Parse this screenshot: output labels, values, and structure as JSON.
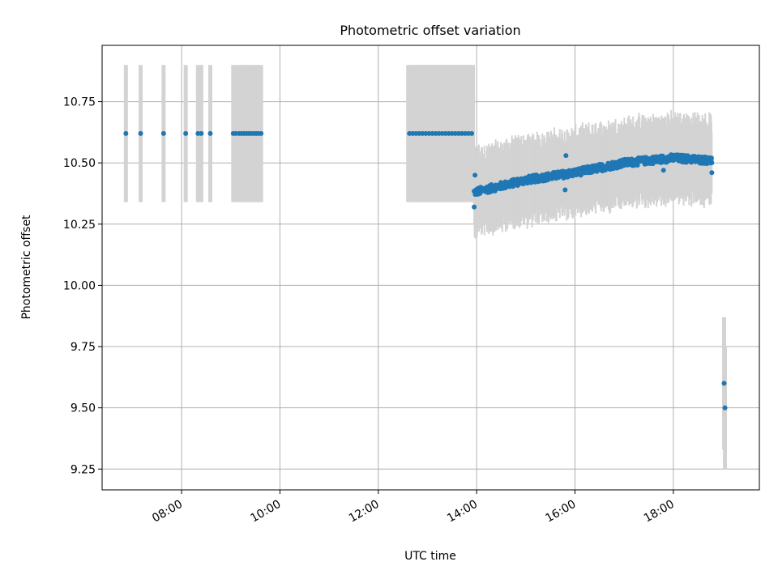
{
  "chart_data": {
    "type": "scatter",
    "title": "Photometric offset variation",
    "xlabel": "UTC time",
    "ylabel": "Photometric offset",
    "x_unit": "UTC time",
    "xlim": [
      "06:23",
      "19:45"
    ],
    "ylim": [
      9.165,
      10.98
    ],
    "x_ticks": [
      "08:00",
      "10:00",
      "12:00",
      "14:00",
      "16:00",
      "18:00"
    ],
    "y_ticks": [
      "9.25",
      "9.50",
      "9.75",
      "10.00",
      "10.25",
      "10.50",
      "10.75"
    ],
    "grid": true,
    "errorbar_color": "#d3d3d3",
    "marker_color": "#1f77b4",
    "early_points": {
      "y": 10.62,
      "error": 0.28,
      "x": [
        "06:52",
        "07:10",
        "07:38",
        "08:05",
        "08:20",
        "08:24",
        "08:35",
        "09:03",
        "09:06",
        "09:10",
        "09:13",
        "09:16",
        "09:19",
        "09:22",
        "09:25",
        "09:28",
        "09:31",
        "09:34",
        "09:37"
      ]
    },
    "midday_points": {
      "y": 10.62,
      "error": 0.28,
      "x": [
        "12:38",
        "12:42",
        "12:46",
        "12:50",
        "12:54",
        "12:58",
        "13:02",
        "13:06",
        "13:10",
        "13:14",
        "13:18",
        "13:22",
        "13:26",
        "13:30",
        "13:34",
        "13:38",
        "13:42",
        "13:46",
        "13:50",
        "13:54"
      ]
    },
    "trend_series": {
      "description_range": [
        "13:57",
        "18:47"
      ],
      "trend": [
        {
          "x": "13:57",
          "y": 10.38
        },
        {
          "x": "15:00",
          "y": 10.43
        },
        {
          "x": "16:00",
          "y": 10.46
        },
        {
          "x": "17:00",
          "y": 10.5
        },
        {
          "x": "18:00",
          "y": 10.52
        },
        {
          "x": "18:47",
          "y": 10.51
        }
      ],
      "error": 0.15,
      "n_points": 650,
      "scatter": 0.015
    },
    "outliers": [
      {
        "x": "13:57",
        "y": 10.32
      },
      {
        "x": "13:58",
        "y": 10.45
      },
      {
        "x": "15:48",
        "y": 10.39
      },
      {
        "x": "15:49",
        "y": 10.53
      },
      {
        "x": "17:48",
        "y": 10.47
      },
      {
        "x": "18:47",
        "y": 10.46
      }
    ],
    "late_points": [
      {
        "x": "19:02",
        "y": 9.6,
        "error": 0.27
      },
      {
        "x": "19:03",
        "y": 9.5,
        "error": 0.25
      }
    ]
  }
}
